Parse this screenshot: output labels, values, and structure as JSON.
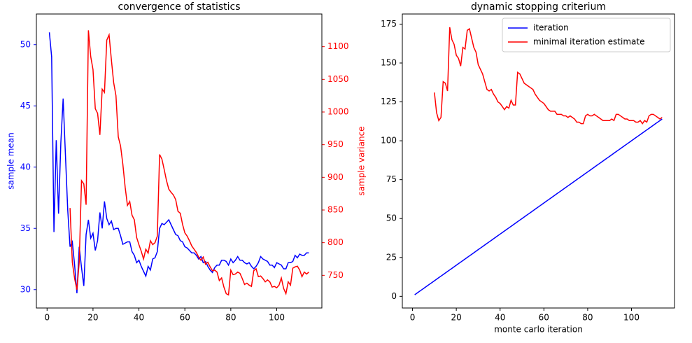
{
  "chart_data": [
    {
      "type": "line",
      "title": "convergence of statistics",
      "ylabel": "sample mean",
      "y2label": "sample variance",
      "x": [
        1,
        2,
        3,
        4,
        5,
        6,
        7,
        8,
        9,
        10,
        11,
        12,
        13,
        14,
        15,
        16,
        17,
        18,
        19,
        20,
        21,
        22,
        23,
        24,
        25,
        26,
        27,
        28,
        29,
        30,
        31,
        32,
        33,
        34,
        35,
        36,
        37,
        38,
        39,
        40,
        41,
        42,
        43,
        44,
        45,
        46,
        47,
        48,
        49,
        50,
        51,
        52,
        53,
        54,
        55,
        56,
        57,
        58,
        59,
        60,
        61,
        62,
        63,
        64,
        65,
        66,
        67,
        68,
        69,
        70,
        71,
        72,
        73,
        74,
        75,
        76,
        77,
        78,
        79,
        80,
        81,
        82,
        83,
        84,
        85,
        86,
        87,
        88,
        89,
        90,
        91,
        92,
        93,
        94,
        95,
        96,
        97,
        98,
        99,
        100,
        101,
        102,
        103,
        104,
        105,
        106,
        107,
        108,
        109,
        110,
        111,
        112,
        113,
        114
      ],
      "xlim": [
        -4.65,
        119.65
      ],
      "xticks": [
        0,
        20,
        40,
        60,
        80,
        100
      ],
      "ylim": [
        28.5,
        52.5
      ],
      "yticks": [
        30,
        35,
        40,
        45,
        50
      ],
      "y2lim": [
        700,
        1150
      ],
      "y2ticks": [
        750,
        800,
        850,
        900,
        950,
        1000,
        1050,
        1100
      ],
      "series": [
        {
          "color": "#0000ff",
          "values": [
            51,
            49,
            34.7,
            42.2,
            36.2,
            42,
            45.6,
            41,
            36.5,
            33.5,
            33.9,
            32,
            29.7,
            33.5,
            31.8,
            30.3,
            34.5,
            35.7,
            34.2,
            34.6,
            33.2,
            34,
            36.3,
            35,
            37.2,
            35.8,
            35.3,
            35.6,
            34.9,
            35,
            35,
            34.4,
            33.7,
            33.8,
            33.9,
            33.9,
            33.1,
            32.8,
            32.2,
            32.4,
            31.9,
            31.5,
            31.1,
            31.9,
            31.6,
            32.5,
            32.6,
            33.1,
            35,
            35.4,
            35.3,
            35.5,
            35.7,
            35.3,
            34.9,
            34.5,
            34.4,
            34,
            33.9,
            33.5,
            33.4,
            33.2,
            33,
            33,
            32.8,
            32.5,
            32.7,
            32.2,
            32.3,
            31.9,
            31.6,
            31.4,
            31.8,
            32,
            32,
            32.4,
            32.4,
            32.3,
            32,
            32.5,
            32.2,
            32.4,
            32.7,
            32.4,
            32.4,
            32.2,
            32.1,
            32.2,
            31.9,
            31.7,
            31.9,
            32.2,
            32.7,
            32.5,
            32.4,
            32.3,
            32,
            32,
            31.8,
            32.2,
            32.1,
            32,
            31.7,
            31.7,
            32.2,
            32.2,
            32.3,
            32.8,
            32.6,
            32.9,
            32.8,
            32.8,
            33,
            33
          ]
        },
        {
          "color": "#ff0000",
          "axis": "y2",
          "values": [
            null,
            null,
            null,
            null,
            null,
            null,
            null,
            null,
            null,
            853,
            770,
            745,
            728,
            770,
            895,
            890,
            858,
            1125,
            1085,
            1065,
            1005,
            998,
            965,
            1035,
            1030,
            1110,
            1118,
            1080,
            1045,
            1025,
            962,
            948,
            920,
            885,
            857,
            863,
            842,
            835,
            808,
            797,
            787,
            775,
            790,
            784,
            803,
            797,
            800,
            810,
            935,
            928,
            912,
            895,
            882,
            877,
            873,
            866,
            848,
            845,
            828,
            815,
            810,
            803,
            795,
            790,
            785,
            778,
            773,
            778,
            767,
            770,
            763,
            757,
            758,
            755,
            742,
            746,
            732,
            722,
            720,
            758,
            751,
            752,
            755,
            753,
            745,
            736,
            738,
            735,
            733,
            757,
            760,
            748,
            749,
            745,
            740,
            743,
            740,
            732,
            733,
            731,
            735,
            746,
            730,
            722,
            740,
            735,
            761,
            763,
            764,
            758,
            748,
            755,
            752,
            755
          ]
        }
      ]
    },
    {
      "type": "line",
      "title": "dynamic stopping criterium",
      "xlabel": "monte carlo iteration",
      "x": [
        1,
        2,
        3,
        4,
        5,
        6,
        7,
        8,
        9,
        10,
        11,
        12,
        13,
        14,
        15,
        16,
        17,
        18,
        19,
        20,
        21,
        22,
        23,
        24,
        25,
        26,
        27,
        28,
        29,
        30,
        31,
        32,
        33,
        34,
        35,
        36,
        37,
        38,
        39,
        40,
        41,
        42,
        43,
        44,
        45,
        46,
        47,
        48,
        49,
        50,
        51,
        52,
        53,
        54,
        55,
        56,
        57,
        58,
        59,
        60,
        61,
        62,
        63,
        64,
        65,
        66,
        67,
        68,
        69,
        70,
        71,
        72,
        73,
        74,
        75,
        76,
        77,
        78,
        79,
        80,
        81,
        82,
        83,
        84,
        85,
        86,
        87,
        88,
        89,
        90,
        91,
        92,
        93,
        94,
        95,
        96,
        97,
        98,
        99,
        100,
        101,
        102,
        103,
        104,
        105,
        106,
        107,
        108,
        109,
        110,
        111,
        112,
        113,
        114
      ],
      "xlim": [
        -4.65,
        119.65
      ],
      "xticks": [
        0,
        20,
        40,
        60,
        80,
        100
      ],
      "ylim": [
        -7.5,
        181.5
      ],
      "yticks": [
        0,
        25,
        50,
        75,
        100,
        125,
        150,
        175
      ],
      "legend": "upper right",
      "series": [
        {
          "name": "iteration",
          "color": "#0000ff",
          "values": [
            1,
            2,
            3,
            4,
            5,
            6,
            7,
            8,
            9,
            10,
            11,
            12,
            13,
            14,
            15,
            16,
            17,
            18,
            19,
            20,
            21,
            22,
            23,
            24,
            25,
            26,
            27,
            28,
            29,
            30,
            31,
            32,
            33,
            34,
            35,
            36,
            37,
            38,
            39,
            40,
            41,
            42,
            43,
            44,
            45,
            46,
            47,
            48,
            49,
            50,
            51,
            52,
            53,
            54,
            55,
            56,
            57,
            58,
            59,
            60,
            61,
            62,
            63,
            64,
            65,
            66,
            67,
            68,
            69,
            70,
            71,
            72,
            73,
            74,
            75,
            76,
            77,
            78,
            79,
            80,
            81,
            82,
            83,
            84,
            85,
            86,
            87,
            88,
            89,
            90,
            91,
            92,
            93,
            94,
            95,
            96,
            97,
            98,
            99,
            100,
            101,
            102,
            103,
            104,
            105,
            106,
            107,
            108,
            109,
            110,
            111,
            112,
            113,
            114
          ]
        },
        {
          "name": "minimal iteration estimate",
          "color": "#ff0000",
          "values": [
            null,
            null,
            null,
            null,
            null,
            null,
            null,
            null,
            null,
            131,
            118,
            113,
            115,
            138,
            137,
            132,
            173,
            165,
            162,
            155,
            153,
            148,
            160,
            159,
            171,
            172,
            166,
            160,
            157,
            149,
            146,
            143,
            138,
            133,
            132,
            133,
            130,
            128,
            125,
            124,
            122,
            120,
            122,
            121,
            126,
            123,
            123,
            144,
            143,
            140,
            137,
            136,
            135,
            134,
            133,
            130,
            128,
            126,
            125,
            124,
            122,
            120,
            119,
            119,
            119,
            117,
            117,
            117,
            116,
            116,
            115,
            116,
            115,
            114,
            112,
            112,
            111,
            111,
            116,
            117,
            116,
            116,
            117,
            116,
            115,
            114,
            113,
            113,
            113,
            113,
            114,
            113,
            117,
            117,
            116,
            115,
            114,
            114,
            113,
            113,
            113,
            112,
            112,
            113,
            111,
            113,
            112,
            116,
            117,
            117,
            116,
            115,
            114,
            115
          ]
        }
      ]
    }
  ]
}
